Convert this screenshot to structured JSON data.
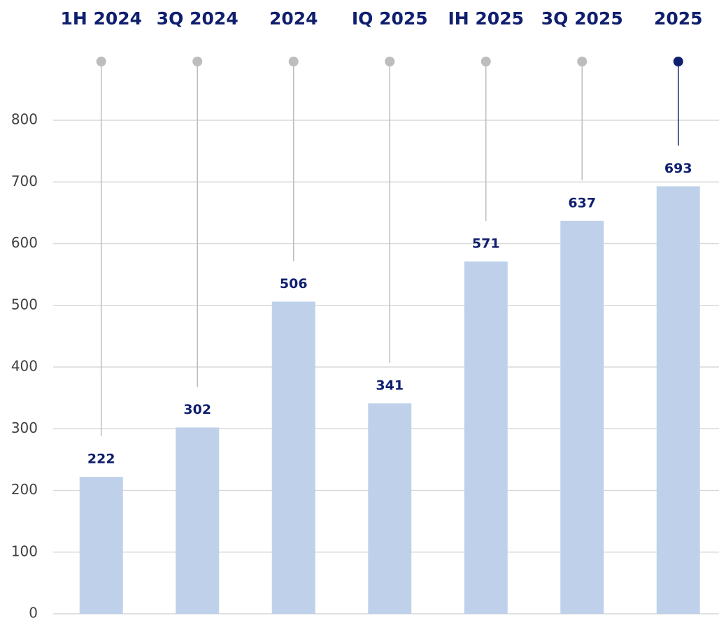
{
  "chart_data": {
    "type": "bar",
    "categories": [
      "1H 2024",
      "3Q 2024",
      "2024",
      "IQ 2025",
      "IH 2025",
      "3Q 2025",
      "2025"
    ],
    "values": [
      222,
      302,
      506,
      341,
      571,
      637,
      693
    ],
    "color": "#bfd1ea",
    "label_color": "#0f1f6e",
    "marker_colors": [
      "#bdbdbd",
      "#bdbdbd",
      "#bdbdbd",
      "#bdbdbd",
      "#bdbdbd",
      "#bdbdbd",
      "#0f1f6e"
    ],
    "ylim": [
      0,
      800
    ],
    "yticks": [
      0,
      100,
      200,
      300,
      400,
      500,
      600,
      700,
      800
    ],
    "grid": true
  }
}
